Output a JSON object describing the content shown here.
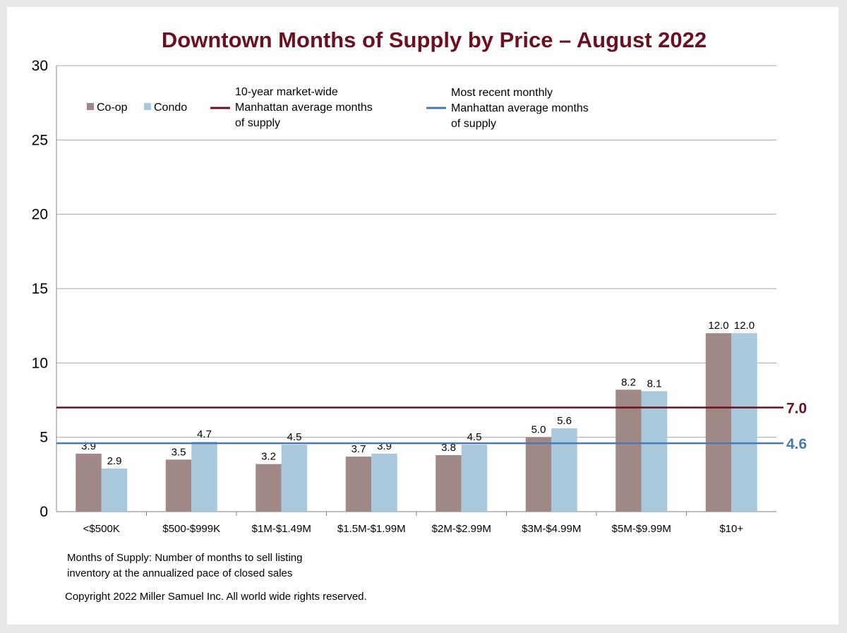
{
  "chart_data": {
    "type": "bar",
    "title": "Downtown Months of Supply by Price – August 2022",
    "categories": [
      "<$500K",
      "$500-$999K",
      "$1M-$1.49M",
      "$1.5M-$1.99M",
      "$2M-$2.99M",
      "$3M-$4.99M",
      "$5M-$9.99M",
      "$10+"
    ],
    "series": [
      {
        "name": "Co-op",
        "color": "#a08886",
        "values": [
          3.9,
          3.5,
          3.2,
          3.7,
          3.8,
          5.0,
          8.2,
          12.0
        ],
        "labels": [
          "3.9",
          "3.5",
          "3.2",
          "3.7",
          "3.8",
          "5.0",
          "8.2",
          "12.0"
        ]
      },
      {
        "name": "Condo",
        "color": "#a9c8dc",
        "values": [
          2.9,
          4.7,
          4.5,
          3.9,
          4.5,
          5.6,
          8.1,
          12.0
        ],
        "labels": [
          "2.9",
          "4.7",
          "4.5",
          "3.9",
          "4.5",
          "5.6",
          "8.1",
          "12.0"
        ]
      }
    ],
    "ylim": [
      0,
      30
    ],
    "yticks": [
      "0",
      "5",
      "10",
      "15",
      "20",
      "25",
      "30"
    ],
    "grid": true,
    "legend_position": "top-left",
    "reference_lines": [
      {
        "value": 7.0,
        "label": "7.0",
        "color": "#6b1020",
        "legend": [
          "10-year market-wide",
          "Manhattan average months",
          "of supply"
        ]
      },
      {
        "value": 4.6,
        "label": "4.6",
        "color": "#4a7aad",
        "legend": [
          "Most recent monthly",
          "Manhattan average months",
          "of supply"
        ]
      }
    ]
  },
  "notes": {
    "definition": [
      "Months of Supply: Number of months to sell listing",
      "inventory at the annualized pace of closed sales"
    ],
    "copyright": "Copyright 2022 Miller Samuel Inc.  All world wide rights reserved."
  }
}
